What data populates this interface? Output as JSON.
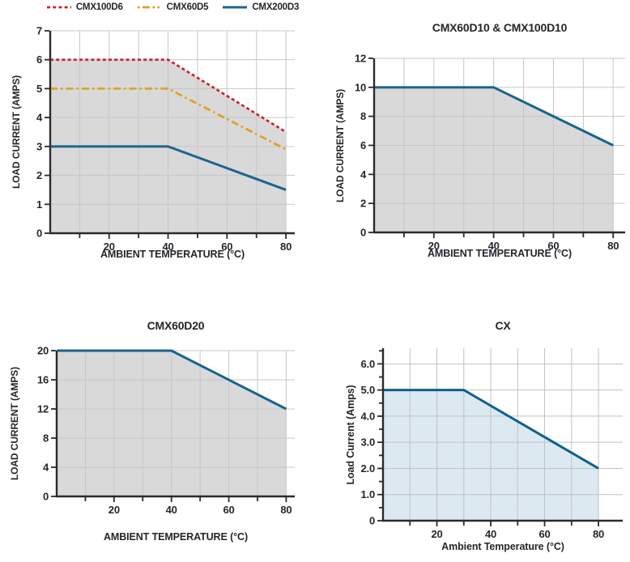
{
  "page": {
    "background": "#ffffff",
    "text_color": "#24262b",
    "axis_color": "#2a2b2e"
  },
  "chart_data": [
    {
      "type": "line",
      "title": "",
      "legend_position": "top",
      "xlabel": "AMBIENT TEMPERATURE (°C)",
      "ylabel": "LOAD CURRENT (AMPS)",
      "xlim": [
        0,
        83
      ],
      "ylim": [
        0,
        7
      ],
      "x_tick_labels": [
        "20",
        "40",
        "60",
        "80"
      ],
      "x_ticks_major": [
        20,
        40,
        60,
        80
      ],
      "x_ticks_minor": [
        10,
        30,
        50,
        70
      ],
      "x_gridlines": [
        10,
        20,
        30,
        40,
        50,
        60,
        70,
        80
      ],
      "y_ticks": [
        0,
        1,
        2,
        3,
        4,
        5,
        6,
        7
      ],
      "y_tick_labels": [
        "0",
        "1",
        "2",
        "3",
        "4",
        "5",
        "6",
        "7"
      ],
      "y_ticks_minor": [],
      "y_gridlines": [
        1,
        2,
        3,
        4,
        5,
        6,
        7
      ],
      "grid_color": "#c6c7c7",
      "fill": {
        "under_series": 0,
        "color": "#d9d9d9"
      },
      "series": [
        {
          "name": "CMX100D6",
          "color": "#c9232b",
          "line_style": "dotted",
          "points": [
            [
              0,
              6
            ],
            [
              40,
              6
            ],
            [
              80,
              3.5
            ]
          ]
        },
        {
          "name": "CMX60D5",
          "color": "#e0a122",
          "line_style": "dash-dot",
          "points": [
            [
              0,
              5
            ],
            [
              40,
              5
            ],
            [
              80,
              2.9
            ]
          ]
        },
        {
          "name": "CMX200D3",
          "color": "#1d648f",
          "line_style": "solid",
          "points": [
            [
              0,
              3
            ],
            [
              40,
              3
            ],
            [
              80,
              1.5
            ]
          ]
        }
      ]
    },
    {
      "type": "line",
      "title": "CMX60D10 & CMX100D10",
      "legend_position": "none",
      "xlabel": "AMBIENT TEMPERATURE (°C)",
      "ylabel": "LOAD CURRENT (AMPS)",
      "xlim": [
        0,
        84
      ],
      "ylim": [
        0,
        12
      ],
      "x_tick_labels": [
        "20",
        "40",
        "60",
        "80"
      ],
      "x_ticks_major": [
        20,
        40,
        60,
        80
      ],
      "x_ticks_minor": [
        10,
        30,
        50,
        70
      ],
      "x_gridlines": [
        10,
        20,
        30,
        40,
        50,
        60,
        70,
        80
      ],
      "y_ticks": [
        0,
        2,
        4,
        6,
        8,
        10,
        12
      ],
      "y_tick_labels": [
        "0",
        "2",
        "4",
        "6",
        "8",
        "10",
        "12"
      ],
      "y_ticks_minor": [],
      "y_gridlines": [
        2,
        4,
        6,
        8,
        10,
        12
      ],
      "grid_color": "#c6c7c7",
      "fill": {
        "under_series": 0,
        "color": "#d9d9d9"
      },
      "series": [
        {
          "name": "CMX60D10 & CMX100D10",
          "color": "#17648f",
          "line_style": "solid",
          "points": [
            [
              0,
              10
            ],
            [
              40,
              10
            ],
            [
              80,
              6
            ]
          ]
        }
      ]
    },
    {
      "type": "line",
      "title": "CMX60D20",
      "legend_position": "none",
      "xlabel": "AMBIENT TEMPERATURE (°C)",
      "ylabel": "LOAD CURRENT (AMPS)",
      "xlim": [
        0,
        83
      ],
      "ylim": [
        0,
        20
      ],
      "x_tick_labels": [
        "20",
        "40",
        "60",
        "80"
      ],
      "x_ticks_major": [
        20,
        40,
        60,
        80
      ],
      "x_ticks_minor": [
        10,
        30,
        50,
        70
      ],
      "x_gridlines": [
        10,
        20,
        30,
        40,
        50,
        60,
        70,
        80
      ],
      "y_ticks": [
        0,
        4,
        8,
        12,
        16,
        20
      ],
      "y_tick_labels": [
        "0",
        "4",
        "8",
        "12",
        "16",
        "20"
      ],
      "y_ticks_minor": [],
      "y_gridlines": [
        4,
        8,
        12,
        16,
        20
      ],
      "grid_color": "#c6c7c7",
      "fill": {
        "under_series": 0,
        "color": "#d9d9d9"
      },
      "series": [
        {
          "name": "CMX60D20",
          "color": "#17648f",
          "line_style": "solid",
          "points": [
            [
              0,
              20
            ],
            [
              40,
              20
            ],
            [
              80,
              12
            ]
          ]
        }
      ]
    },
    {
      "type": "line",
      "title": "CX",
      "legend_position": "none",
      "xlabel": "Ambient Temperature (°C)",
      "ylabel": "Load Current (Amps)",
      "xlim": [
        0,
        89
      ],
      "ylim": [
        0,
        6.6
      ],
      "x_tick_labels": [
        "20",
        "40",
        "60",
        "80"
      ],
      "x_ticks_major": [
        20,
        40,
        60,
        80
      ],
      "x_ticks_minor": [
        10,
        30,
        50,
        70
      ],
      "x_gridlines": [
        10,
        20,
        30,
        40,
        50,
        60,
        70,
        80
      ],
      "y_ticks": [
        0,
        1,
        2,
        3,
        4,
        5,
        6
      ],
      "y_tick_labels": [
        "0",
        "1.0",
        "2.0",
        "3.0",
        "4.0",
        "5.0",
        "6.0"
      ],
      "y_ticks_minor": [
        0.5,
        1.5,
        2.5,
        3.5,
        4.5,
        5.5,
        6.5
      ],
      "y_gridlines": [
        1,
        2,
        3,
        4,
        5,
        6
      ],
      "grid_color": "#bfc2c4",
      "fill": {
        "under_series": 0,
        "color": "#dde9f0"
      },
      "series": [
        {
          "name": "CX",
          "color": "#0f608e",
          "line_style": "solid",
          "points": [
            [
              0,
              5
            ],
            [
              30,
              5
            ],
            [
              80,
              2
            ]
          ]
        }
      ]
    }
  ]
}
